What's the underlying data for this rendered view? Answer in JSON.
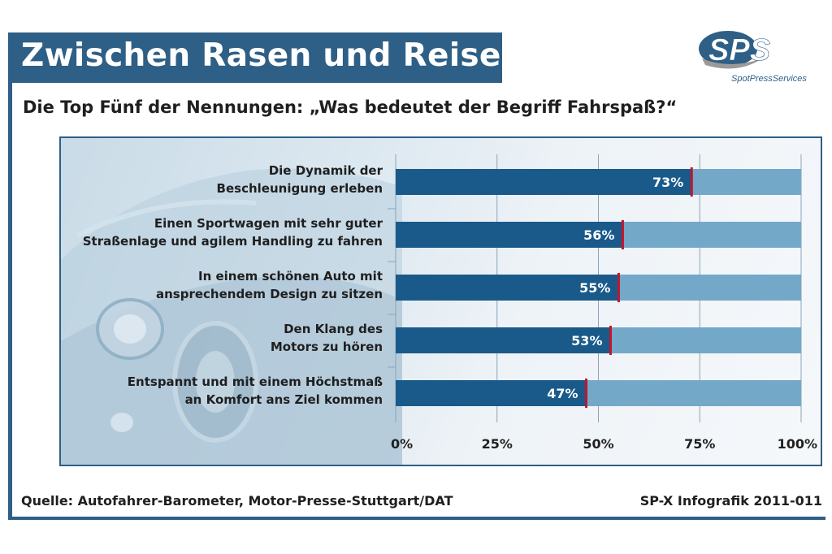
{
  "title": "Zwischen Rasen und Reisen",
  "subtitle": "Die Top Fünf der Nennungen: „Was bedeutet der Begriff Fahrspaß?“",
  "logo": {
    "mark": "SPS",
    "tagline": "SpotPressServices"
  },
  "footer": {
    "source": "Quelle: Autofahrer-Barometer, Motor-Presse-Stuttgart/DAT",
    "code": "SP-X Infografik 2011-011"
  },
  "colors": {
    "brand": "#2e5f86",
    "bar_fill": "#1a5a8a",
    "bar_track": "#74a8c8",
    "marker": "#c0162c",
    "text": "#1f1f1f"
  },
  "chart_data": {
    "type": "bar",
    "orientation": "horizontal",
    "categories": [
      [
        "Die Dynamik der",
        "Beschleunigung erleben"
      ],
      [
        "Einen Sportwagen mit sehr guter",
        "Straßenlage und agilem Handling zu fahren"
      ],
      [
        "In einem schönen Auto mit",
        "ansprechendem Design zu sitzen"
      ],
      [
        "Den Klang des",
        "Motors zu hören"
      ],
      [
        "Entspannt und mit einem Höchstmaß",
        "an Komfort ans Ziel kommen"
      ]
    ],
    "values": [
      73,
      56,
      55,
      53,
      47
    ],
    "value_labels": [
      "73%",
      "56%",
      "55%",
      "53%",
      "47%"
    ],
    "xlim": [
      0,
      100
    ],
    "ticks": [
      0,
      25,
      50,
      75,
      100
    ],
    "tick_labels": [
      "0%",
      "25%",
      "50%",
      "75%",
      "100%"
    ],
    "grid": true
  }
}
